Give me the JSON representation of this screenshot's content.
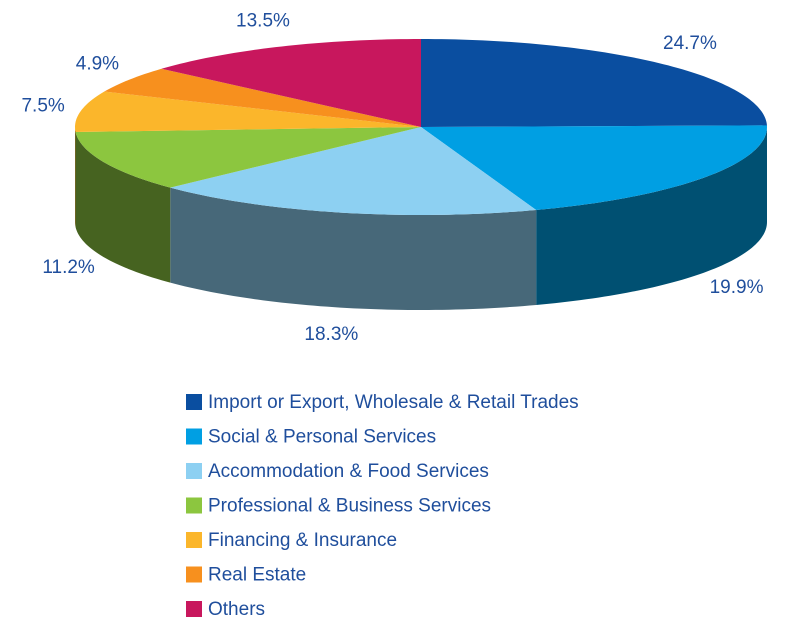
{
  "chart_data": {
    "type": "pie",
    "categories": [
      "Import or Export, Wholesale & Retail Trades",
      "Social & Personal Services",
      "Accommodation & Food Services",
      "Professional & Business Services",
      "Financing & Insurance",
      "Real Estate",
      "Others"
    ],
    "values": [
      24.7,
      19.9,
      18.3,
      11.2,
      7.5,
      4.9,
      13.5
    ],
    "value_labels": [
      "24.7%",
      "19.9%",
      "18.3%",
      "11.2%",
      "7.5%",
      "4.9%",
      "13.5%"
    ],
    "colors": [
      "#0a4ea0",
      "#009fe3",
      "#8dd0f2",
      "#8cc63f",
      "#fbb62b",
      "#f7901e",
      "#c8175d"
    ],
    "legend": "bottom"
  }
}
